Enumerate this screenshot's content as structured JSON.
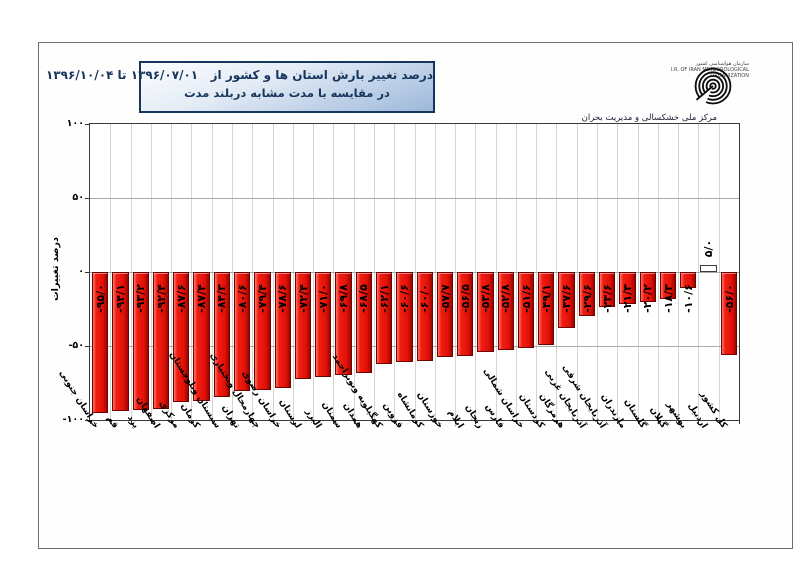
{
  "header": {
    "title_line1": "درصد تغییر بارش استان ها و کشور از   ۱۳۹۶/۰۷/۰۱ تا ۱۳۹۶/۱۰/۰۴",
    "title_line2": "در مقایسه با مدت مشابه دربلند مدت",
    "logo_tiny_line1": "سازمان هواشناسی کشور",
    "logo_tiny_line2": "I.R. OF IRAN METEOROLOGICAL ORGANIZATION",
    "org_caption": "مرکز ملی خشکسالی و مدیریت بحران"
  },
  "chart_data": {
    "type": "bar",
    "title": "درصد تغییر بارش استان ها و کشور از ۱۳۹۶/۰۷/۰۱ تا ۱۳۹۶/۱۰/۰۴ در مقایسه با مدت مشابه دربلند مدت",
    "ylabel": "درصد تغییرات",
    "xlabel": "",
    "ylim": [
      -100,
      100
    ],
    "gridlines": [
      50,
      0,
      -50
    ],
    "grid": "horizontal gridlines + light vertical column separators",
    "legend": "none",
    "bar_color": "#e8150c",
    "positive_bar_fill": "#ffffff",
    "categories": [
      "خراسان جنوبی",
      "قم",
      "یزد",
      "اصفهان",
      "مرکزی",
      "کرمان",
      "سیستان وبلوچستان",
      "تهران",
      "چهارمحال وبختیاری",
      "خراسان رضوی",
      "لرستان",
      "البرز",
      "سمنان",
      "همدان",
      "کهگیلویه وبویراحمد",
      "قزوین",
      "کرمانشاه",
      "خوزستان",
      "ایلام",
      "زنجان",
      "فارس",
      "خراسان شمالی",
      "کردستان",
      "هرمزگان",
      "آذربایجان غربی",
      "آذربایجان شرقی",
      "مازندران",
      "گلستان",
      "گیلان",
      "بوشهر",
      "اردبیل",
      "کل کشور"
    ],
    "values": [
      -95.0,
      -94.1,
      -93.2,
      -92.4,
      -87.6,
      -87.4,
      -84.3,
      -80.6,
      -79.4,
      -78.6,
      -72.4,
      -71.0,
      -69.8,
      -68.5,
      -62.1,
      -60.6,
      -60.0,
      -57.7,
      -56.5,
      -53.8,
      -52.8,
      -51.6,
      -49.1,
      -37.6,
      -29.6,
      -23.6,
      -21.3,
      -20.2,
      -18.3,
      -10.6,
      5.0,
      -56.0
    ],
    "value_labels": [
      "-۹۵/۰",
      "-۹۴/۱",
      "-۹۳/۲",
      "-۹۲/۴",
      "-۸۷/۶",
      "-۸۷/۴",
      "-۸۴/۳",
      "-۸۰/۶",
      "-۷۹/۴",
      "-۷۸/۶",
      "-۷۲/۴",
      "-۷۱/۰",
      "-۶۹/۸",
      "-۶۸/۵",
      "-۶۲/۱",
      "-۶۰/۶",
      "-۶۰/۰",
      "-۵۷/۷",
      "-۵۶/۵",
      "-۵۳/۸",
      "-۵۲/۸",
      "-۵۱/۶",
      "-۴۹/۱",
      "-۳۷/۶",
      "-۲۹/۶",
      "-۲۳/۶",
      "-۲۱/۳",
      "-۲۰/۲",
      "-۱۸/۳",
      "-۱۰/۶",
      "۵/۰",
      "-۵۶/۰"
    ],
    "yticks": [
      {
        "value": 100,
        "label": "۱۰۰"
      },
      {
        "value": 50,
        "label": "۵۰"
      },
      {
        "value": 0,
        "label": "۰"
      },
      {
        "value": -50,
        "label": "-۵۰"
      },
      {
        "value": -100,
        "label": "-۱۰۰"
      }
    ]
  }
}
